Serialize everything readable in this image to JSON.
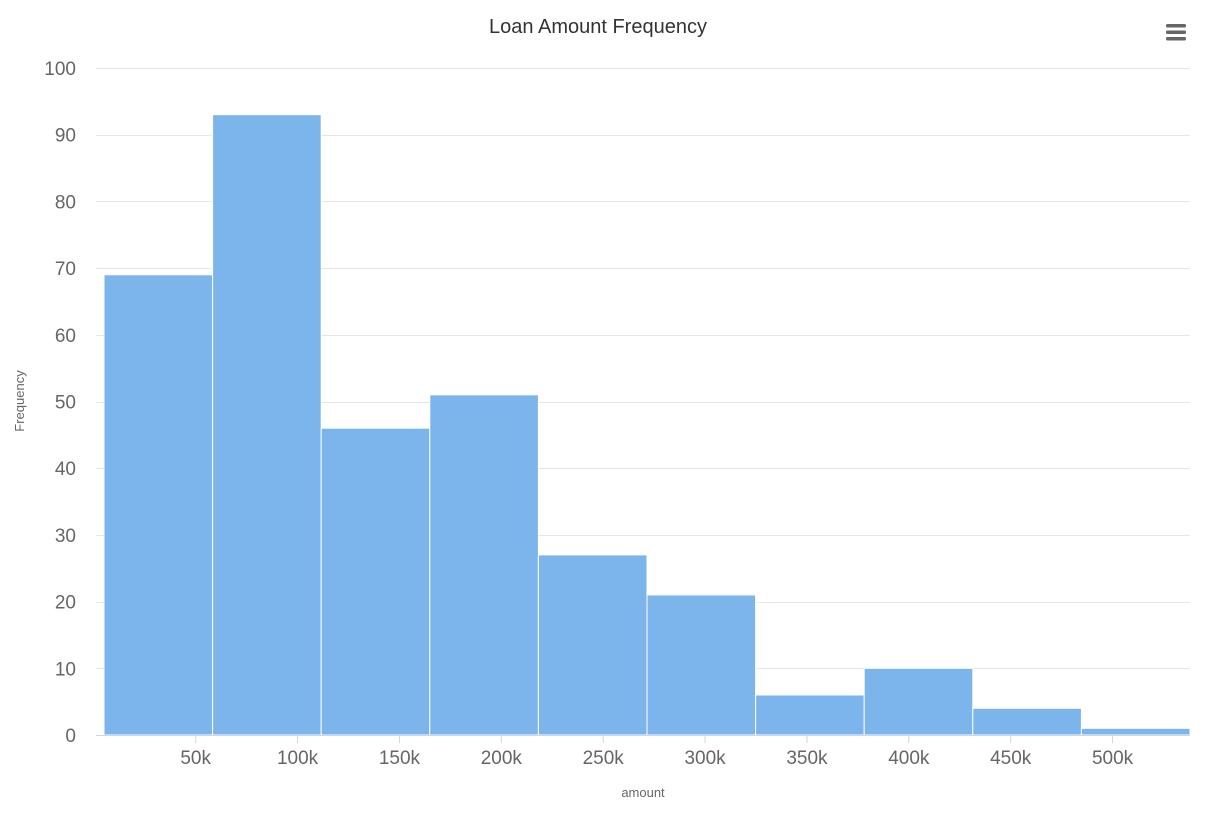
{
  "chart_data": {
    "type": "bar",
    "title": "Loan Amount Frequency",
    "xlabel": "amount",
    "ylabel": "Frequency",
    "ylim": [
      0,
      100
    ],
    "yticks": [
      0,
      10,
      20,
      30,
      40,
      50,
      60,
      70,
      80,
      90,
      100
    ],
    "xlim": [
      5000,
      538000
    ],
    "xticks": [
      {
        "value": 50000,
        "label": "50k"
      },
      {
        "value": 100000,
        "label": "100k"
      },
      {
        "value": 150000,
        "label": "150k"
      },
      {
        "value": 200000,
        "label": "200k"
      },
      {
        "value": 250000,
        "label": "250k"
      },
      {
        "value": 300000,
        "label": "300k"
      },
      {
        "value": 350000,
        "label": "350k"
      },
      {
        "value": 400000,
        "label": "400k"
      },
      {
        "value": 450000,
        "label": "450k"
      },
      {
        "value": 500000,
        "label": "500k"
      }
    ],
    "bins": [
      {
        "x0": 5000,
        "x1": 58300,
        "value": 69
      },
      {
        "x0": 58300,
        "x1": 111600,
        "value": 93
      },
      {
        "x0": 111600,
        "x1": 164900,
        "value": 46
      },
      {
        "x0": 164900,
        "x1": 218200,
        "value": 51
      },
      {
        "x0": 218200,
        "x1": 271500,
        "value": 27
      },
      {
        "x0": 271500,
        "x1": 324800,
        "value": 21
      },
      {
        "x0": 324800,
        "x1": 378100,
        "value": 6
      },
      {
        "x0": 378100,
        "x1": 431400,
        "value": 10
      },
      {
        "x0": 431400,
        "x1": 484700,
        "value": 4
      },
      {
        "x0": 484700,
        "x1": 538000,
        "value": 1
      }
    ],
    "bar_color": "#7cb5ec",
    "grid": true,
    "legend": "none"
  },
  "menu_icon": "hamburger-menu-icon"
}
